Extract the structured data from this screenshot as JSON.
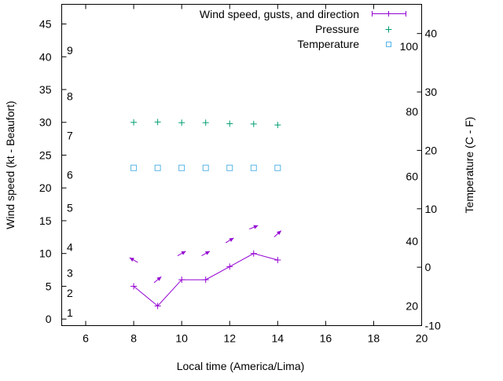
{
  "chart_data": {
    "type": "line",
    "title": "",
    "xlabel": "Local time (America/Lima)",
    "ylabel": "Wind speed (kt - Beaufort)",
    "y2label": "Temperature (C - F)",
    "xlim": [
      5,
      20
    ],
    "ylim": [
      -1,
      48
    ],
    "y2lim": [
      -10,
      45
    ],
    "x_ticks": [
      6,
      8,
      10,
      12,
      14,
      16,
      18,
      20
    ],
    "y_ticks": [
      0,
      5,
      10,
      15,
      20,
      25,
      30,
      35,
      40,
      45
    ],
    "y2_ticks_c": [
      -10,
      0,
      10,
      20,
      30,
      40
    ],
    "y2_ticks_f": [
      {
        "label": "20",
        "celsius": -6.67
      },
      {
        "label": "40",
        "celsius": 4.44
      },
      {
        "label": "60",
        "celsius": 15.56
      },
      {
        "label": "80",
        "celsius": 26.67
      },
      {
        "label": "100",
        "celsius": 37.78
      }
    ],
    "beaufort_labels": [
      {
        "label": "1",
        "kt": 1
      },
      {
        "label": "2",
        "kt": 4
      },
      {
        "label": "3",
        "kt": 7
      },
      {
        "label": "4",
        "kt": 11
      },
      {
        "label": "5",
        "kt": 17
      },
      {
        "label": "6",
        "kt": 22
      },
      {
        "label": "7",
        "kt": 28
      },
      {
        "label": "8",
        "kt": 34
      },
      {
        "label": "9",
        "kt": 41
      }
    ],
    "legend": {
      "placement": "top-right",
      "entries": [
        "Wind speed, gusts, and direction",
        "Pressure",
        "Temperature"
      ]
    },
    "series": [
      {
        "name": "Wind speed, gusts, and direction",
        "color": "#9400d3",
        "x": [
          8,
          9,
          10,
          11,
          12,
          13,
          14
        ],
        "speed": [
          5,
          2,
          6,
          6,
          8,
          10,
          9
        ],
        "gust": [
          9,
          6,
          10,
          10,
          12,
          14,
          13
        ],
        "arrow_angle_deg": [
          150,
          39,
          29,
          29,
          31,
          22,
          42
        ]
      },
      {
        "name": "Pressure",
        "color": "#009e73",
        "x": [
          8,
          9,
          10,
          11,
          12,
          13,
          14
        ],
        "values": [
          30.0,
          30.05,
          29.95,
          29.95,
          29.8,
          29.75,
          29.6
        ]
      },
      {
        "name": "Temperature",
        "color": "#56b4e9",
        "x": [
          8,
          9,
          10,
          11,
          12,
          13,
          14
        ],
        "values_c": [
          17,
          17,
          17,
          17,
          17,
          17,
          17
        ]
      }
    ]
  }
}
